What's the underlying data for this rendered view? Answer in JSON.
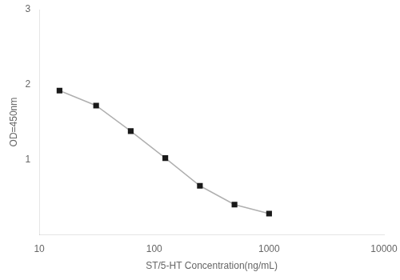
{
  "chart_data": {
    "type": "line",
    "xlabel": "ST/5-HT Concentration(ng/mL)",
    "ylabel": "OD=450nm",
    "x": [
      15,
      31.25,
      62.5,
      125,
      250,
      500,
      1000
    ],
    "values": [
      1.92,
      1.72,
      1.38,
      1.02,
      0.65,
      0.4,
      0.28
    ],
    "color": "#b0b0b0",
    "colors": [
      "#1a1a1a",
      "#1a1a1a",
      "#1a1a1a",
      "#1a1a1a",
      "#1a1a1a",
      "#1a1a1a",
      "#1a1a1a"
    ],
    "marker": "square",
    "log": "x",
    "xlim": [
      10,
      10000
    ],
    "xticks": [
      10,
      100,
      1000,
      10000
    ],
    "ylim": [
      0,
      3
    ],
    "yticks": [
      1,
      2,
      3
    ],
    "grid": false
  }
}
